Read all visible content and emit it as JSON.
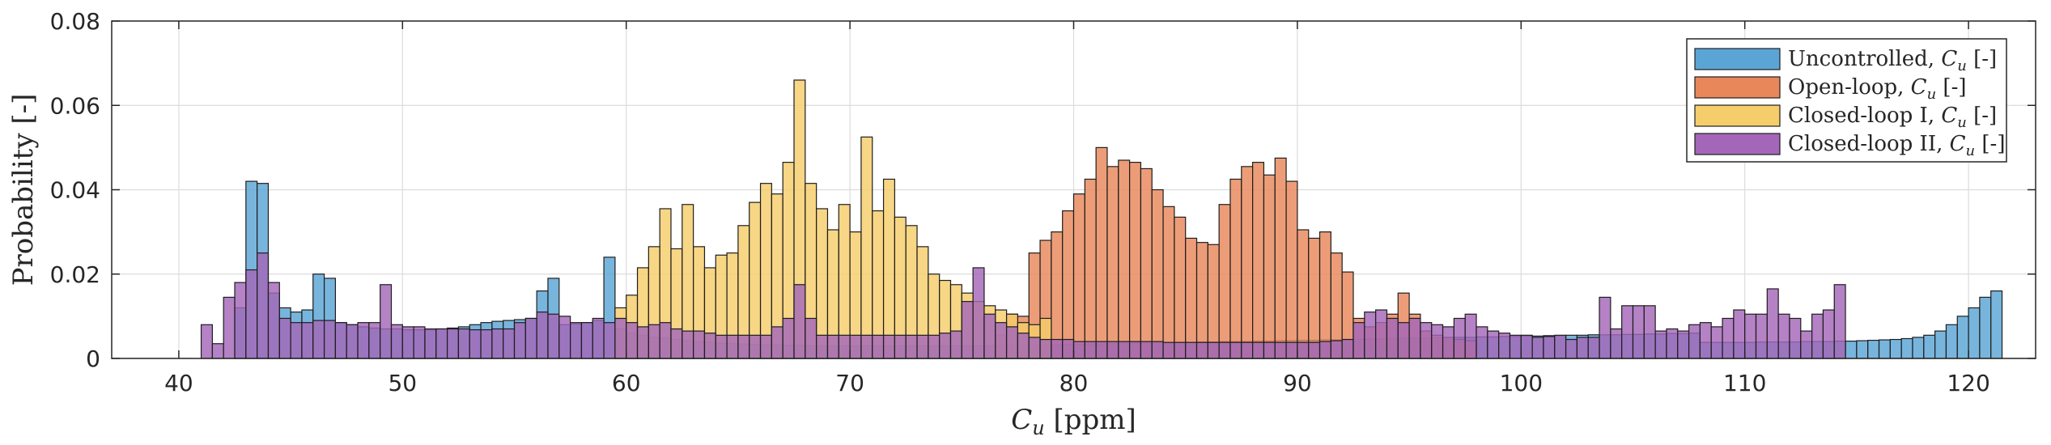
{
  "chart_data": {
    "type": "bar",
    "xlabel_var": "C",
    "xlabel_sub": "u",
    "xlabel_unit": " [ppm]",
    "ylabel": "Probability [-]",
    "xlim": [
      37,
      123
    ],
    "ylim": [
      0,
      0.08
    ],
    "xticks": [
      40,
      50,
      60,
      70,
      80,
      90,
      100,
      110,
      120
    ],
    "yticks": [
      0,
      0.02,
      0.04,
      0.06,
      0.08
    ],
    "ytick_labels": [
      "0",
      "0.02",
      "0.04",
      "0.06",
      "0.08"
    ],
    "grid": true,
    "legend_position": "top-right",
    "bin_width": 0.5,
    "series": [
      {
        "name": "Uncontrolled",
        "name_var": "C",
        "name_sub": "u",
        "name_unit": " [-]",
        "color": "#5aa5d6",
        "x0": 42.5,
        "values": [
          0.012,
          0.042,
          0.0415,
          0.0155,
          0.012,
          0.011,
          0.0115,
          0.02,
          0.019,
          0.0085,
          0.008,
          0.0075,
          0.0072,
          0.007,
          0.007,
          0.0068,
          0.0068,
          0.0068,
          0.007,
          0.0072,
          0.0075,
          0.008,
          0.0085,
          0.0088,
          0.009,
          0.0092,
          0.0095,
          0.016,
          0.019,
          0.008,
          0.0082,
          0.0085,
          0.009,
          0.024,
          0.007,
          0.006,
          0.0055,
          0.005,
          0.0048,
          0.0045,
          0.0042,
          0.004,
          0.0038,
          0.0036,
          0.0035,
          0.0034,
          0.0033,
          0.0032,
          0.0032,
          0.0031,
          0.0031,
          0.003,
          0.003,
          0.003,
          0.003,
          0.003,
          0.003,
          0.003,
          0.003,
          0.003,
          0.003,
          0.003,
          0.003,
          0.003,
          0.003,
          0.003,
          0.003,
          0.003,
          0.003,
          0.003,
          0.0031,
          0.0031,
          0.0032,
          0.0032,
          0.0033,
          0.0033,
          0.0034,
          0.0034,
          0.0035,
          0.0035,
          0.0036,
          0.0036,
          0.0037,
          0.0037,
          0.0038,
          0.0038,
          0.0039,
          0.0039,
          0.004,
          0.004,
          0.004,
          0.0041,
          0.0041,
          0.0042,
          0.0042,
          0.0043,
          0.0043,
          0.0044,
          0.0044,
          0.0045,
          0.0045,
          0.0046,
          0.0046,
          0.0047,
          0.0047,
          0.0048,
          0.0048,
          0.0049,
          0.0049,
          0.005,
          0.005,
          0.0051,
          0.0051,
          0.0052,
          0.0052,
          0.0053,
          0.0053,
          0.0054,
          0.0054,
          0.0055,
          0.0055,
          0.0056,
          0.0056,
          0.0056,
          0.0057,
          0.0057,
          0.0058,
          0.0058,
          0.0059,
          0.0059,
          0.006,
          0.0038,
          0.0038,
          0.0038,
          0.0038,
          0.0038,
          0.0039,
          0.0039,
          0.0039,
          0.0039,
          0.004,
          0.004,
          0.004,
          0.0041,
          0.0041,
          0.0042,
          0.0043,
          0.0044,
          0.0045,
          0.0047,
          0.005,
          0.0055,
          0.0065,
          0.008,
          0.01,
          0.012,
          0.0145,
          0.016
        ]
      },
      {
        "name": "Open-loop",
        "name_var": "C",
        "name_sub": "u",
        "name_unit": " [-]",
        "color": "#e8875a",
        "x0": 76.5,
        "values": [
          0.0055,
          0.0105,
          0.01,
          0.025,
          0.028,
          0.03,
          0.035,
          0.039,
          0.0425,
          0.05,
          0.0455,
          0.047,
          0.0465,
          0.045,
          0.04,
          0.036,
          0.0335,
          0.0285,
          0.0275,
          0.027,
          0.0365,
          0.0425,
          0.0455,
          0.0465,
          0.0435,
          0.0475,
          0.042,
          0.0305,
          0.0285,
          0.03,
          0.025,
          0.0205,
          0.0095,
          0.0075,
          0.0085,
          0.0105,
          0.0155,
          0.0105,
          0.0065,
          0.0055,
          0.005,
          0.0045,
          0.0042
        ]
      },
      {
        "name": "Closed-loop I",
        "name_var": "C",
        "name_sub": "u",
        "name_unit": " [-]",
        "color": "#f5cd6a",
        "x0": 59.5,
        "values": [
          0.012,
          0.015,
          0.0215,
          0.0265,
          0.0355,
          0.026,
          0.0365,
          0.0265,
          0.0215,
          0.0245,
          0.025,
          0.0315,
          0.037,
          0.0415,
          0.039,
          0.0465,
          0.066,
          0.0415,
          0.0355,
          0.0305,
          0.0365,
          0.03,
          0.0525,
          0.035,
          0.0425,
          0.0335,
          0.0315,
          0.0265,
          0.02,
          0.0185,
          0.0175,
          0.0155,
          0.0135,
          0.0125,
          0.0115,
          0.0105,
          0.0085,
          0.008,
          0.0095
        ]
      },
      {
        "name": "Closed-loop II",
        "name_var": "C",
        "name_sub": "u",
        "name_unit": " [-]",
        "color": "#a366b8",
        "x0": 41,
        "values": [
          0.008,
          0.0035,
          0.0145,
          0.018,
          0.021,
          0.025,
          0.018,
          0.0095,
          0.0085,
          0.0085,
          0.009,
          0.009,
          0.0085,
          0.008,
          0.0085,
          0.0085,
          0.0175,
          0.008,
          0.0075,
          0.0075,
          0.007,
          0.007,
          0.007,
          0.007,
          0.0068,
          0.0068,
          0.007,
          0.007,
          0.0085,
          0.0095,
          0.011,
          0.0105,
          0.01,
          0.0085,
          0.0085,
          0.0095,
          0.0085,
          0.0095,
          0.0085,
          0.0075,
          0.008,
          0.0085,
          0.007,
          0.0065,
          0.0065,
          0.006,
          0.0055,
          0.0055,
          0.0055,
          0.0055,
          0.0055,
          0.0075,
          0.0095,
          0.0175,
          0.0095,
          0.0055,
          0.0055,
          0.0055,
          0.0055,
          0.0055,
          0.0055,
          0.0055,
          0.0055,
          0.0055,
          0.0055,
          0.0055,
          0.006,
          0.0065,
          0.0135,
          0.0215,
          0.0105,
          0.0085,
          0.0075,
          0.006,
          0.005,
          0.0045,
          0.0045,
          0.0045,
          0.004,
          0.004,
          0.004,
          0.004,
          0.004,
          0.004,
          0.004,
          0.004,
          0.0038,
          0.0038,
          0.0038,
          0.0038,
          0.0038,
          0.0038,
          0.0038,
          0.0038,
          0.0038,
          0.0038,
          0.0038,
          0.0038,
          0.0038,
          0.0038,
          0.004,
          0.0042,
          0.0045,
          0.0085,
          0.011,
          0.0115,
          0.0095,
          0.0085,
          0.0095,
          0.0085,
          0.008,
          0.0075,
          0.0095,
          0.0105,
          0.0075,
          0.0065,
          0.006,
          0.0055,
          0.0055,
          0.005,
          0.0052,
          0.0055,
          0.0045,
          0.005,
          0.005,
          0.0145,
          0.007,
          0.0125,
          0.0125,
          0.0125,
          0.0065,
          0.007,
          0.0065,
          0.008,
          0.0085,
          0.0075,
          0.0095,
          0.0115,
          0.0105,
          0.0105,
          0.0165,
          0.0105,
          0.0095,
          0.0065,
          0.0105,
          0.0115,
          0.0175
        ]
      }
    ]
  }
}
